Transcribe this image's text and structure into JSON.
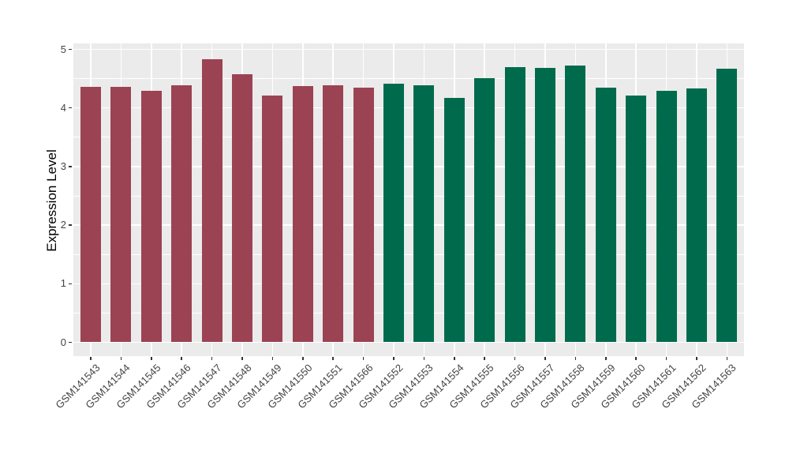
{
  "chart_data": {
    "type": "bar",
    "title": "",
    "xlabel": "",
    "ylabel": "Expression Level",
    "ylim": [
      0,
      5
    ],
    "yticks": [
      0,
      1,
      2,
      3,
      4,
      5
    ],
    "yticks_minor": [
      0.5,
      1.5,
      2.5,
      3.5,
      4.5
    ],
    "grid": "major-and-minor",
    "legend_position": "none",
    "panel_background": "#EBEBEB",
    "gridline_color": "#FFFFFF",
    "axis_text_color": "#444444",
    "tick_mark_color": "#333333",
    "categories": [
      "GSM141543",
      "GSM141544",
      "GSM141545",
      "GSM141546",
      "GSM141547",
      "GSM141548",
      "GSM141549",
      "GSM141550",
      "GSM141551",
      "GSM141566",
      "GSM141552",
      "GSM141553",
      "GSM141554",
      "GSM141555",
      "GSM141556",
      "GSM141557",
      "GSM141558",
      "GSM141559",
      "GSM141560",
      "GSM141561",
      "GSM141562",
      "GSM141563"
    ],
    "values": [
      4.36,
      4.36,
      4.29,
      4.39,
      4.83,
      4.57,
      4.21,
      4.37,
      4.39,
      4.35,
      4.41,
      4.39,
      4.17,
      4.51,
      4.7,
      4.68,
      4.72,
      4.35,
      4.21,
      4.29,
      4.33,
      4.67
    ],
    "groups": [
      {
        "name": "group-1",
        "color": "#9B4353",
        "count": 10
      },
      {
        "name": "group-2",
        "color": "#006B4C",
        "count": 12
      }
    ]
  }
}
